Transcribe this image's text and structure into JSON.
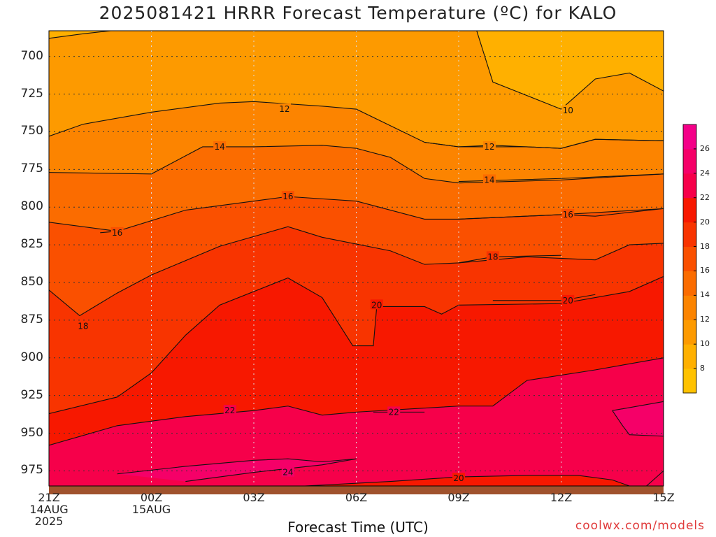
{
  "title": "2025081421 HRRR Forecast Temperature (ºC) for KALO",
  "credit": "coolwx.com/models",
  "chart_data": {
    "type": "heatmap",
    "title": "2025081421 HRRR Forecast Temperature (ºC) for KALO",
    "xlabel": "Forecast Time (UTC)",
    "ylabel": "",
    "x_ticks": [
      {
        "hour": 0,
        "lines": [
          "21Z",
          "14AUG",
          "2025"
        ]
      },
      {
        "hour": 3,
        "lines": [
          "00Z",
          "15AUG"
        ]
      },
      {
        "hour": 6,
        "lines": [
          "03Z"
        ]
      },
      {
        "hour": 9,
        "lines": [
          "06Z"
        ]
      },
      {
        "hour": 12,
        "lines": [
          "09Z"
        ]
      },
      {
        "hour": 15,
        "lines": [
          "12Z"
        ]
      },
      {
        "hour": 18,
        "lines": [
          "15Z"
        ]
      }
    ],
    "xlim_hours": [
      0,
      18
    ],
    "y_ticks": [
      700,
      725,
      750,
      775,
      800,
      825,
      850,
      875,
      900,
      925,
      950,
      975
    ],
    "ylim_hpa": [
      683,
      985
    ],
    "ground_hpa": 985,
    "grid": true,
    "colorbar": {
      "levels": [
        6,
        8,
        10,
        12,
        14,
        16,
        18,
        20,
        22,
        24,
        26,
        28
      ],
      "tick_labels": [
        "8",
        "10",
        "12",
        "14",
        "16",
        "18",
        "20",
        "22",
        "24",
        "26"
      ],
      "colors": [
        "#ffc200",
        "#ffb000",
        "#fd9a00",
        "#fc8400",
        "#fb6c00",
        "#fa5000",
        "#f83400",
        "#f71800",
        "#f6004a",
        "#f50068",
        "#f40088"
      ],
      "ground_color": "#a0522d"
    },
    "isotherms": [
      {
        "value": 10,
        "points": [
          [
            0,
            688
          ],
          [
            1,
            685
          ],
          [
            3,
            680
          ],
          [
            6,
            683
          ],
          [
            9,
            682
          ],
          [
            11.5,
            681
          ],
          [
            12.5,
            681
          ],
          [
            13,
            717
          ],
          [
            15,
            735
          ],
          [
            16,
            715
          ],
          [
            17,
            711
          ],
          [
            18,
            723
          ]
        ],
        "label": {
          "text": "10",
          "hour": 15.2,
          "hpa": 736
        }
      },
      {
        "value": 12,
        "points": [
          [
            0,
            753
          ],
          [
            1,
            745
          ],
          [
            3,
            737
          ],
          [
            5,
            731
          ],
          [
            6,
            730
          ],
          [
            8,
            733
          ],
          [
            9,
            735
          ],
          [
            11,
            757
          ],
          [
            12,
            760
          ],
          [
            14,
            760
          ],
          [
            15,
            761
          ],
          [
            16,
            755
          ],
          [
            18,
            756
          ]
        ],
        "label": {
          "text": "12",
          "hour": 6.9,
          "hpa": 735
        }
      },
      {
        "value": 12,
        "points": [
          [
            11,
            757
          ],
          [
            12,
            760
          ],
          [
            13,
            759
          ],
          [
            15,
            761
          ],
          [
            16,
            755
          ],
          [
            18,
            756
          ]
        ],
        "label": {
          "text": "12",
          "hour": 12.9,
          "hpa": 760
        }
      },
      {
        "value": 14,
        "points": [
          [
            0,
            777
          ],
          [
            3,
            778
          ],
          [
            4.5,
            760
          ],
          [
            6,
            760
          ],
          [
            8,
            759
          ],
          [
            9,
            761
          ],
          [
            10,
            767
          ],
          [
            11,
            781
          ],
          [
            12,
            784
          ],
          [
            15,
            782
          ],
          [
            18,
            778
          ]
        ],
        "label": {
          "text": "14",
          "hour": 5,
          "hpa": 760
        }
      },
      {
        "value": 14,
        "points": [
          [
            12,
            783
          ],
          [
            15,
            781
          ],
          [
            18,
            778
          ]
        ],
        "label": {
          "text": "14",
          "hour": 12.9,
          "hpa": 782
        }
      },
      {
        "value": 16,
        "points": [
          [
            0,
            810
          ],
          [
            2,
            816
          ],
          [
            4,
            802
          ],
          [
            7,
            793
          ],
          [
            9,
            796
          ],
          [
            11,
            808
          ],
          [
            12,
            808
          ],
          [
            15,
            805
          ],
          [
            18,
            801
          ]
        ],
        "label": {
          "text": "16",
          "hour": 7,
          "hpa": 793
        }
      },
      {
        "value": 16,
        "points": [
          [
            1.5,
            817
          ],
          [
            2,
            816
          ]
        ],
        "label": {
          "text": "16",
          "hour": 2,
          "hpa": 817
        }
      },
      {
        "value": 16,
        "points": [
          [
            12,
            808
          ],
          [
            15,
            805
          ],
          [
            16,
            806
          ],
          [
            18,
            801
          ]
        ],
        "label": {
          "text": "16",
          "hour": 15.2,
          "hpa": 805
        }
      },
      {
        "value": 18,
        "points": [
          [
            0,
            855
          ],
          [
            0.9,
            872
          ],
          [
            2,
            857
          ],
          [
            3,
            845
          ],
          [
            5,
            826
          ],
          [
            7,
            813
          ],
          [
            8,
            820
          ],
          [
            10,
            829
          ],
          [
            11,
            838
          ],
          [
            12,
            837
          ],
          [
            14,
            833
          ],
          [
            16,
            835
          ],
          [
            17,
            825
          ],
          [
            18,
            824
          ]
        ],
        "label": {
          "text": "18",
          "hour": 1,
          "hpa": 879
        }
      },
      {
        "value": 18,
        "points": [
          [
            12,
            837
          ],
          [
            13,
            833
          ],
          [
            15,
            832
          ]
        ],
        "label": {
          "text": "18",
          "hour": 13,
          "hpa": 833
        }
      },
      {
        "value": 20,
        "points": [
          [
            0,
            937
          ],
          [
            2,
            926
          ],
          [
            3,
            910
          ],
          [
            4,
            885
          ],
          [
            5,
            865
          ],
          [
            7,
            847
          ],
          [
            8,
            860
          ],
          [
            8.9,
            892
          ],
          [
            9.5,
            892
          ],
          [
            9.6,
            866
          ],
          [
            11,
            866
          ],
          [
            11.5,
            871
          ],
          [
            12,
            865
          ],
          [
            15,
            864
          ],
          [
            17,
            856
          ],
          [
            18,
            846
          ]
        ],
        "label": {
          "text": "20",
          "hour": 9.6,
          "hpa": 865
        }
      },
      {
        "value": 20,
        "points": [
          [
            13,
            862
          ],
          [
            15,
            862
          ],
          [
            16,
            858
          ]
        ],
        "label": {
          "text": "20",
          "hour": 15.2,
          "hpa": 862
        }
      },
      {
        "value": 22,
        "points": [
          [
            0,
            958
          ],
          [
            2,
            945
          ],
          [
            4,
            939
          ],
          [
            6,
            935
          ],
          [
            7,
            932
          ],
          [
            8,
            938
          ],
          [
            9,
            936
          ],
          [
            12,
            932
          ],
          [
            13,
            932
          ],
          [
            14,
            915
          ],
          [
            16,
            908
          ],
          [
            18,
            900
          ]
        ],
        "label": {
          "text": "22",
          "hour": 5.3,
          "hpa": 935
        }
      },
      {
        "value": 22,
        "points": [
          [
            9.5,
            936
          ],
          [
            10,
            936
          ],
          [
            11,
            936
          ]
        ],
        "label": {
          "text": "22",
          "hour": 10.1,
          "hpa": 936
        }
      },
      {
        "value": 24,
        "points": [
          [
            2,
            977
          ],
          [
            4,
            972
          ],
          [
            6,
            968
          ],
          [
            7,
            967
          ],
          [
            8,
            969
          ],
          [
            9,
            967
          ],
          [
            8,
            971
          ],
          [
            6,
            976
          ],
          [
            4,
            982
          ]
        ],
        "label": {
          "text": "24",
          "hour": 7,
          "hpa": 976
        }
      },
      {
        "value": 24,
        "points": [
          [
            16.5,
            935
          ],
          [
            18,
            929
          ],
          [
            18,
            952
          ],
          [
            17,
            951
          ],
          [
            16.8,
            945
          ],
          [
            16.5,
            935
          ]
        ],
        "label": null
      },
      {
        "value": 20,
        "points": [
          [
            7.5,
            985
          ],
          [
            10,
            982
          ],
          [
            12,
            979
          ],
          [
            14,
            978
          ],
          [
            15.5,
            978
          ],
          [
            16.5,
            981
          ],
          [
            17,
            985
          ]
        ],
        "label": {
          "text": "20",
          "hour": 12,
          "hpa": 980
        }
      },
      {
        "value": 22,
        "points": [
          [
            17.5,
            985
          ],
          [
            18,
            975
          ]
        ],
        "label": null
      }
    ]
  }
}
